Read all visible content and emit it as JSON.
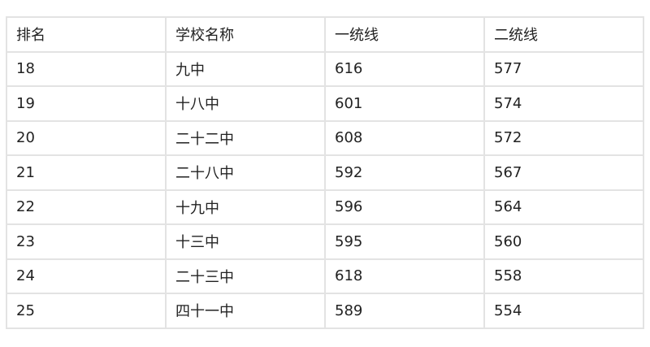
{
  "table": {
    "headers": [
      "排名",
      "学校名称",
      "一统线",
      "二统线"
    ],
    "rows": [
      [
        "18",
        "九中",
        "616",
        "577"
      ],
      [
        "19",
        "十八中",
        "601",
        "574"
      ],
      [
        "20",
        "二十二中",
        "608",
        "572"
      ],
      [
        "21",
        "二十八中",
        "592",
        "567"
      ],
      [
        "22",
        "十九中",
        "596",
        "564"
      ],
      [
        "23",
        "十三中",
        "595",
        "560"
      ],
      [
        "24",
        "二十三中",
        "618",
        "558"
      ],
      [
        "25",
        "四十一中",
        "589",
        "554"
      ]
    ]
  }
}
